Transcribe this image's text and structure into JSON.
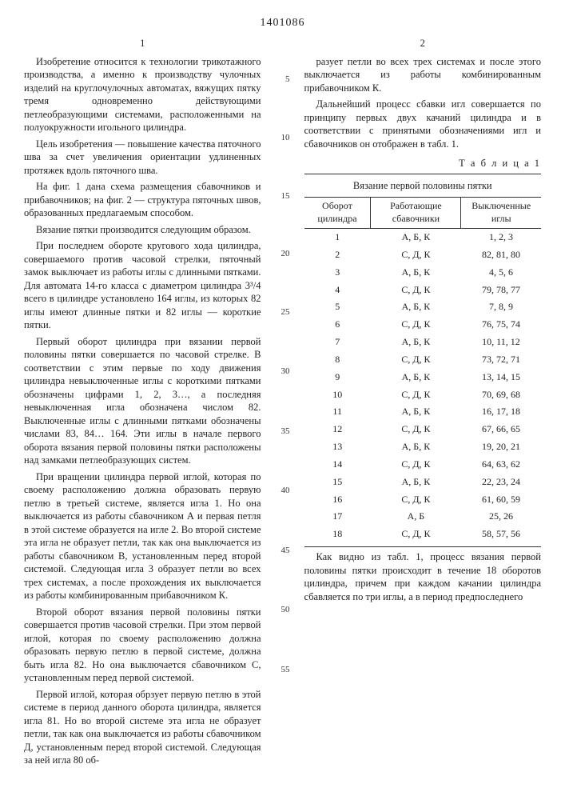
{
  "doc_number": "1401086",
  "col1_num": "1",
  "col2_num": "2",
  "side_numbers_right": [
    "5",
    "10",
    "15",
    "20",
    "25",
    "30",
    "35",
    "40",
    "45",
    "50",
    "55"
  ],
  "left": {
    "p1": "Изобретение относится к технологии трикотажного производства, а именно к производству чулочных изделий на круглочулочных автоматах, вяжущих пятку тремя одновременно действующими петлеобразующими системами, расположенными на полуокружности игольного цилиндра.",
    "p2": "Цель изобретения — повышение качества пяточного шва за счет увеличения ориентации удлиненных протяжек вдоль пяточного шва.",
    "p3": "На фиг. 1 дана схема размещения сбавочников и прибавочников; на фиг. 2 — структура пяточных швов, образованных предлагаемым способом.",
    "p4": "Вязание пятки производится следующим образом.",
    "p5": "При последнем обороте кругового хода цилиндра, совершаемого против часовой стрелки, пяточный замок выключает из работы иглы с длинными пятками. Для автомата 14-го класса с диаметром цилиндра 3³/4 всего в цилиндре установлено 164 иглы, из которых 82 иглы имеют длинные пятки и 82 иглы — короткие пятки.",
    "p6": "Первый оборот цилиндра при вязании первой половины пятки совершается по часовой стрелке. В соответствии с этим первые по ходу движения цилиндра невыключенные иглы с короткими пятками обозначены цифрами 1, 2, 3…, а последняя невыключенная игла обозначена числом 82. Выключенные иглы с длинными пятками обозначены числами 83, 84… 164. Эти иглы в начале первого оборота вязания первой половины пятки расположены над замками петлеобразующих систем.",
    "p7": "При вращении цилиндра первой иглой, которая по своему расположению должна образовать первую петлю в третьей системе, является игла 1. Но она выключается из работы сбавочником А и первая петля в этой системе образуется на игле 2. Во второй системе эта игла не образует петли, так как она выключается из работы сбавочником В, установленным перед второй системой. Следующая игла 3 образует петли во всех трех системах, а после прохождения их выключается из работы комбинированным прибавочником К.",
    "p8": "Второй оборот вязания первой половины пятки совершается против часовой стрелки. При этом первой иглой, которая по своему расположению должна образовать первую петлю в первой системе, должна быть игла 82. Но она выключается сбавочником С, установленным перед первой системой.",
    "p9": "Первой иглой, которая обрзует первую петлю в этой системе в период данного оборота цилиндра, является игла 81. Но во второй системе эта игла не образует петли, так как она выключается из работы сбавочником Д, установленным перед второй системой. Следующая за ней игла 80 об-"
  },
  "right": {
    "p1": "разует петли во всех трех системах и после этого выключается из работы комбинированным прибавочником К.",
    "p2": "Дальнейший процесс сбавки игл совершается по принципу первых двух качаний цилиндра и в соответствии с принятыми обозначениями игл и сбавочников он отображен в табл. 1.",
    "p_after": "Как видно из табл. 1, процесс вязания первой половины пятки происходит в течение 18 оборотов цилиндра, причем при каждом качании цилиндра сбавляется по три иглы, а в период предпоследнего"
  },
  "table": {
    "label": "Т а б л и ц а 1",
    "caption": "Вязание первой половины пятки",
    "head": [
      "Оборот цилиндра",
      "Работающие сбавочники",
      "Выключенные иглы"
    ],
    "rows": [
      [
        "1",
        "А, Б, К",
        "1, 2, 3"
      ],
      [
        "2",
        "С, Д, К",
        "82, 81, 80"
      ],
      [
        "3",
        "А, Б, К",
        "4, 5, 6"
      ],
      [
        "4",
        "С, Д, К",
        "79, 78, 77"
      ],
      [
        "5",
        "А, Б, К",
        "7, 8, 9"
      ],
      [
        "6",
        "С, Д, К",
        "76, 75, 74"
      ],
      [
        "7",
        "А, Б, К",
        "10, 11, 12"
      ],
      [
        "8",
        "С, Д, К",
        "73, 72, 71"
      ],
      [
        "9",
        "А, Б, К",
        "13, 14, 15"
      ],
      [
        "10",
        "С, Д, К",
        "70, 69, 68"
      ],
      [
        "11",
        "А, Б, К",
        "16, 17, 18"
      ],
      [
        "12",
        "С, Д, К",
        "67, 66, 65"
      ],
      [
        "13",
        "А, Б, К",
        "19, 20, 21"
      ],
      [
        "14",
        "С, Д, К",
        "64, 63, 62"
      ],
      [
        "15",
        "А, Б, К",
        "22, 23, 24"
      ],
      [
        "16",
        "С, Д, К",
        "61, 60, 59"
      ],
      [
        "17",
        "А, Б",
        "25, 26"
      ],
      [
        "18",
        "С, Д, К",
        "58, 57, 56"
      ]
    ]
  }
}
